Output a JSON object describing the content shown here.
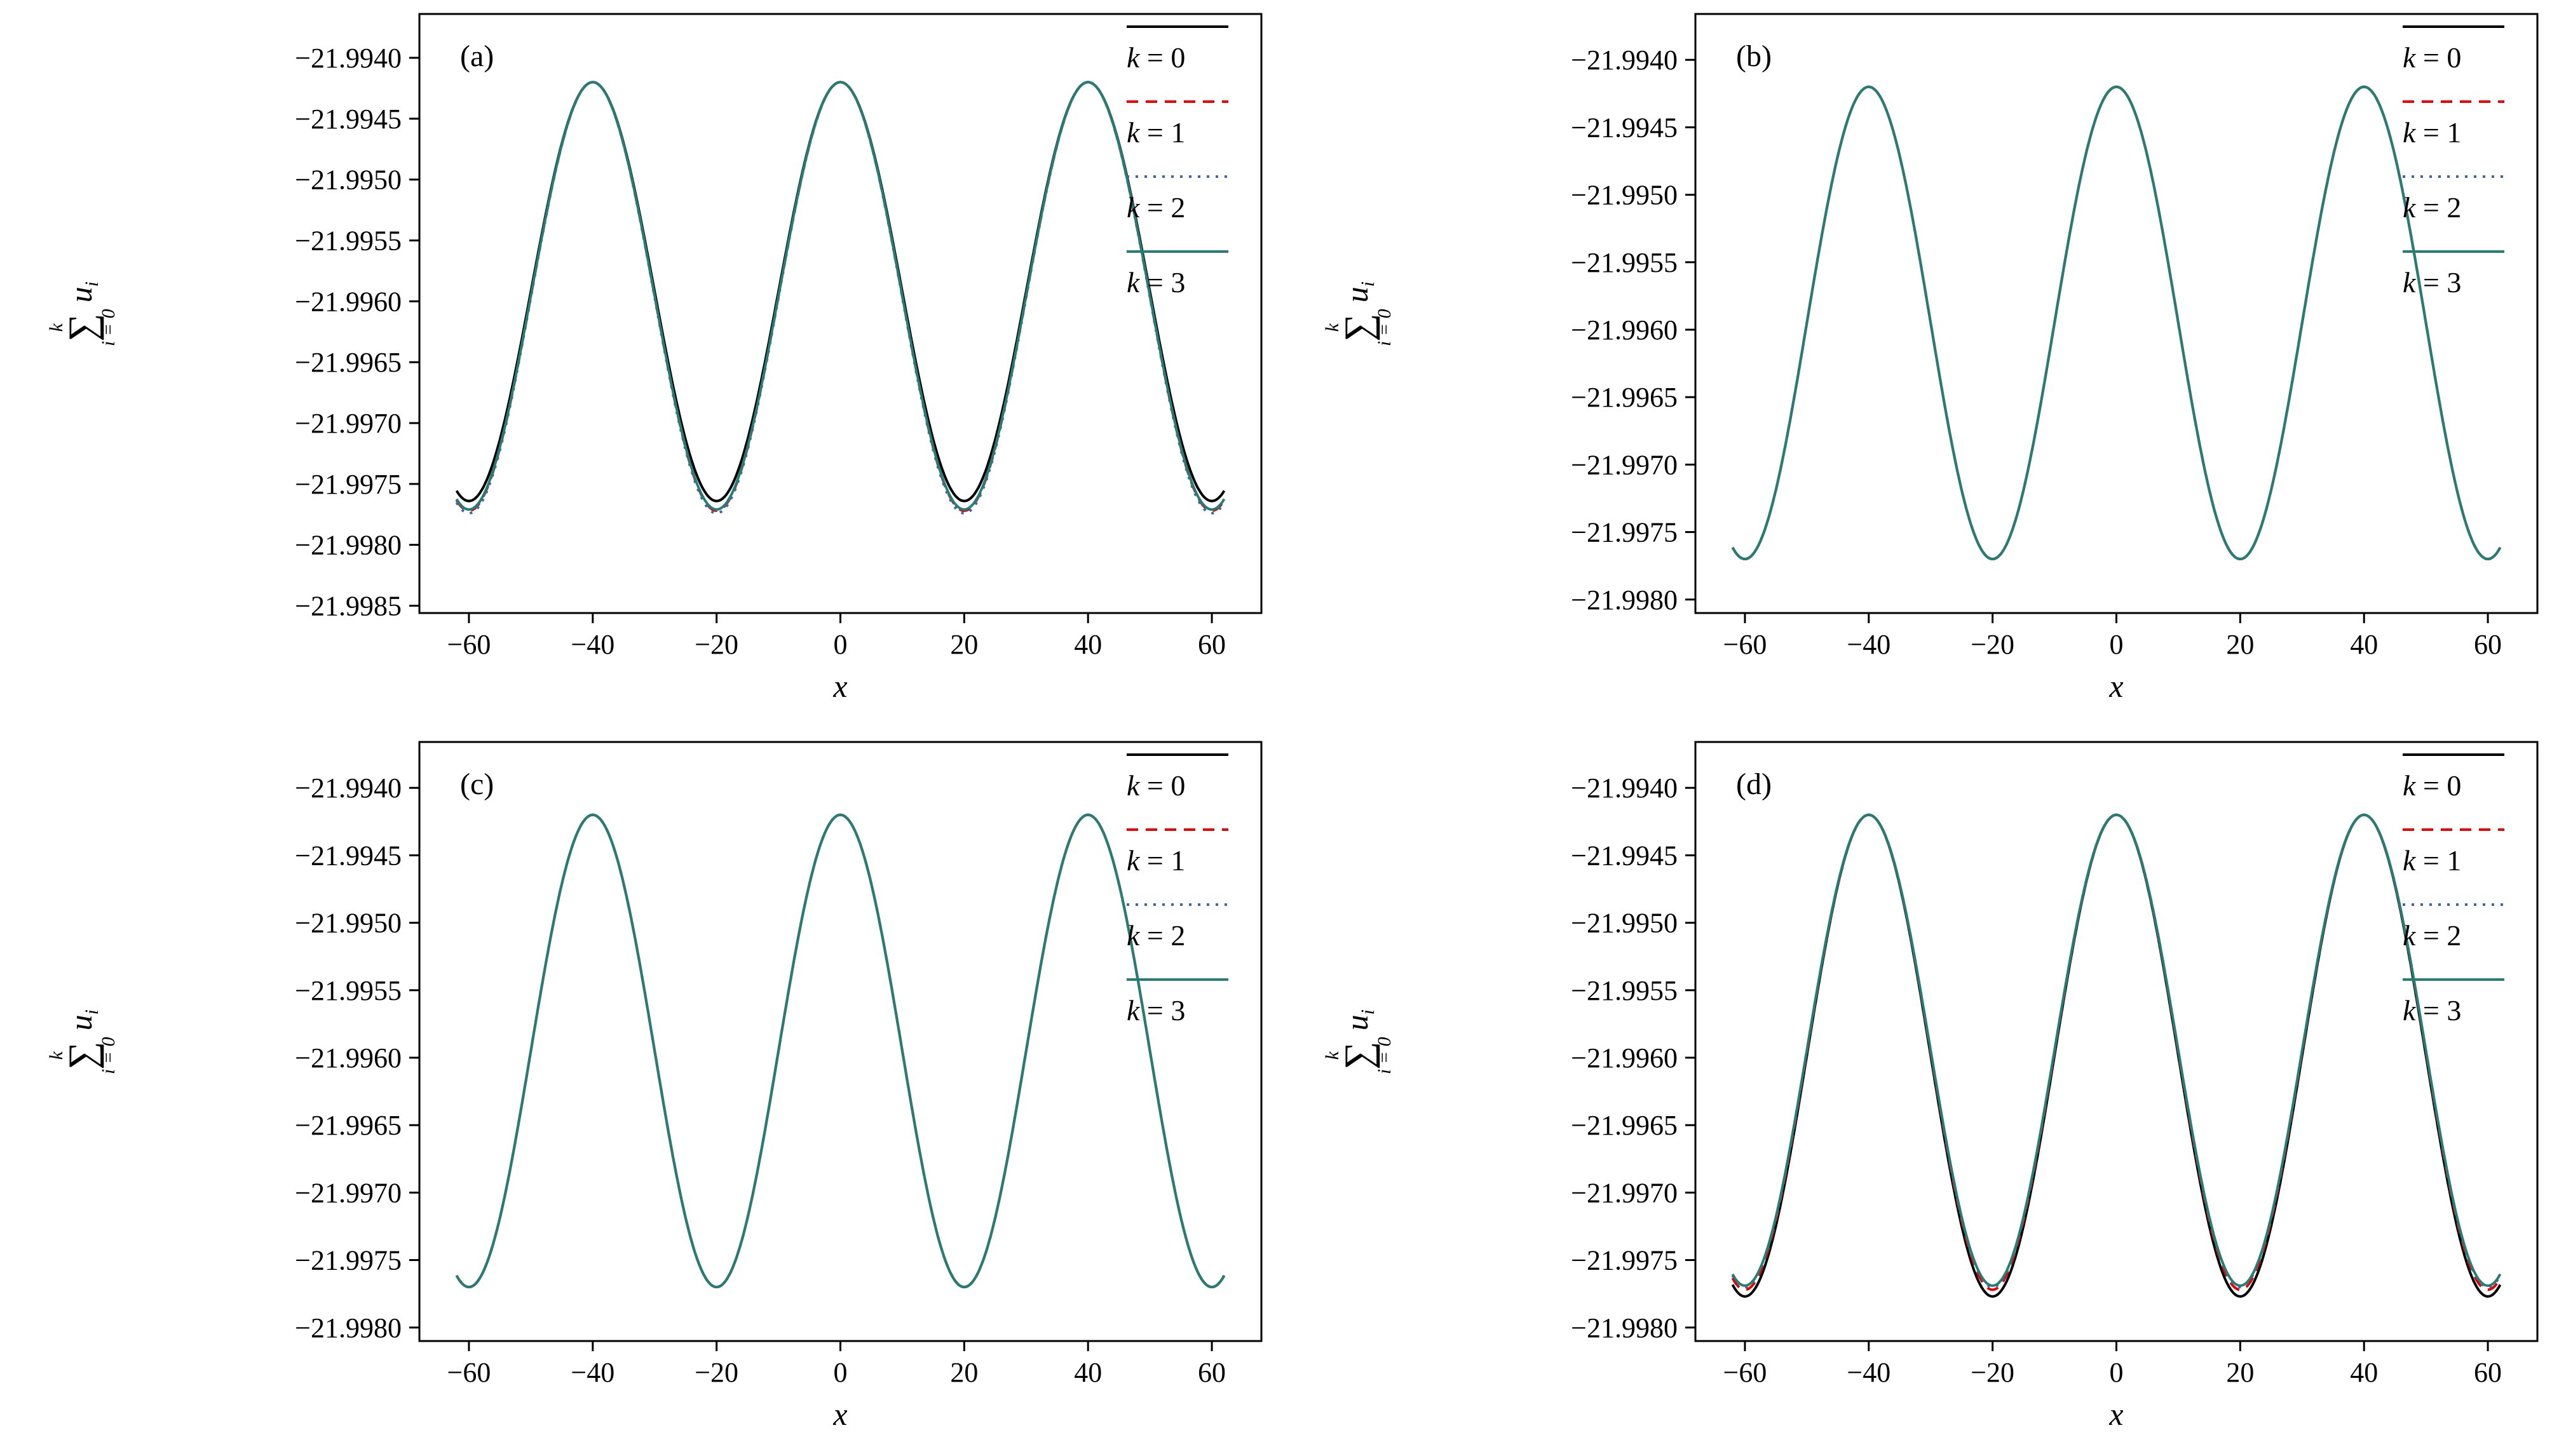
{
  "figure": {
    "background": "#ffffff"
  },
  "ylabel": {
    "upper": "k",
    "sigma": "∑",
    "lower": "i = 0",
    "term": "u",
    "term_sub": "i"
  },
  "colors": {
    "k0": "#000000",
    "k1": "#e60000",
    "k2": "#3a66a8",
    "k3": "#267d76"
  },
  "legend_entries": [
    "k = 0",
    "k = 1",
    "k = 2",
    "k = 3"
  ],
  "chart_data": [
    {
      "id": "a",
      "label": "(a)",
      "type": "line",
      "xlabel": "x",
      "xlim": [
        -68,
        68
      ],
      "ylim": [
        -21.99856,
        -21.99364
      ],
      "xticks": [
        -60,
        -40,
        -20,
        0,
        20,
        40,
        60
      ],
      "yticks": [
        -21.994,
        -21.9945,
        -21.995,
        -21.9955,
        -21.996,
        -21.9965,
        -21.997,
        -21.9975,
        -21.998,
        -21.9985
      ],
      "x_sample": {
        "start": -62,
        "end": 62,
        "step": 0.25
      },
      "curve_model": "y(x) = peak - depth*(1 - cos(2*pi*x/period))/2",
      "peaks_x": [
        -40,
        0,
        40
      ],
      "troughs_x": [
        -60,
        -20,
        20,
        60
      ],
      "legend_position": "top-right",
      "series": [
        {
          "name": "k = 0",
          "color": "#000000",
          "style": "solid",
          "period": 40,
          "peak": -21.9942,
          "depth": 0.00344,
          "trough": -21.99764
        },
        {
          "name": "k = 1",
          "color": "#e60000",
          "style": "dashed",
          "period": 40,
          "peak": -21.9942,
          "depth": 0.00352,
          "trough": -21.99772
        },
        {
          "name": "k = 2",
          "color": "#3a66a8",
          "style": "dotted",
          "period": 40,
          "peak": -21.9942,
          "depth": 0.00354,
          "trough": -21.99774
        },
        {
          "name": "k = 3",
          "color": "#267d76",
          "style": "solid",
          "period": 40,
          "peak": -21.9942,
          "depth": 0.00351,
          "trough": -21.99771
        }
      ]
    },
    {
      "id": "b",
      "label": "(b)",
      "type": "line",
      "xlabel": "x",
      "xlim": [
        -68,
        68
      ],
      "ylim": [
        -21.9981,
        -21.99366
      ],
      "xticks": [
        -60,
        -40,
        -20,
        0,
        20,
        40,
        60
      ],
      "yticks": [
        -21.994,
        -21.9945,
        -21.995,
        -21.9955,
        -21.996,
        -21.9965,
        -21.997,
        -21.9975,
        -21.998
      ],
      "x_sample": {
        "start": -62,
        "end": 62,
        "step": 0.25
      },
      "curve_model": "y(x) = peak - depth*(1 - cos(2*pi*x/period))/2",
      "peaks_x": [
        -40,
        0,
        40
      ],
      "troughs_x": [
        -60,
        -20,
        20,
        60
      ],
      "legend_position": "top-right",
      "series": [
        {
          "name": "k = 0",
          "color": "#000000",
          "style": "solid",
          "period": 40,
          "peak": -21.9942,
          "depth": 0.0035,
          "trough": -21.9977
        },
        {
          "name": "k = 1",
          "color": "#e60000",
          "style": "dashed",
          "period": 40,
          "peak": -21.9942,
          "depth": 0.0035,
          "trough": -21.9977
        },
        {
          "name": "k = 2",
          "color": "#3a66a8",
          "style": "dotted",
          "period": 40,
          "peak": -21.9942,
          "depth": 0.0035,
          "trough": -21.9977
        },
        {
          "name": "k = 3",
          "color": "#267d76",
          "style": "solid",
          "period": 40,
          "peak": -21.9942,
          "depth": 0.0035,
          "trough": -21.9977
        }
      ]
    },
    {
      "id": "c",
      "label": "(c)",
      "type": "line",
      "xlabel": "x",
      "xlim": [
        -68,
        68
      ],
      "ylim": [
        -21.9981,
        -21.99366
      ],
      "xticks": [
        -60,
        -40,
        -20,
        0,
        20,
        40,
        60
      ],
      "yticks": [
        -21.994,
        -21.9945,
        -21.995,
        -21.9955,
        -21.996,
        -21.9965,
        -21.997,
        -21.9975,
        -21.998
      ],
      "x_sample": {
        "start": -62,
        "end": 62,
        "step": 0.25
      },
      "curve_model": "y(x) = peak - depth*(1 - cos(2*pi*x/period))/2",
      "peaks_x": [
        -40,
        0,
        40
      ],
      "troughs_x": [
        -60,
        -20,
        20,
        60
      ],
      "legend_position": "top-right",
      "series": [
        {
          "name": "k = 0",
          "color": "#000000",
          "style": "solid",
          "period": 40,
          "peak": -21.9942,
          "depth": 0.0035,
          "trough": -21.9977
        },
        {
          "name": "k = 1",
          "color": "#e60000",
          "style": "dashed",
          "period": 40,
          "peak": -21.9942,
          "depth": 0.0035,
          "trough": -21.9977
        },
        {
          "name": "k = 2",
          "color": "#3a66a8",
          "style": "dotted",
          "period": 40,
          "peak": -21.9942,
          "depth": 0.0035,
          "trough": -21.9977
        },
        {
          "name": "k = 3",
          "color": "#267d76",
          "style": "solid",
          "period": 40,
          "peak": -21.9942,
          "depth": 0.0035,
          "trough": -21.9977
        }
      ]
    },
    {
      "id": "d",
      "label": "(d)",
      "type": "line",
      "xlabel": "x",
      "xlim": [
        -68,
        68
      ],
      "ylim": [
        -21.9981,
        -21.99366
      ],
      "xticks": [
        -60,
        -40,
        -20,
        0,
        20,
        40,
        60
      ],
      "yticks": [
        -21.994,
        -21.9945,
        -21.995,
        -21.9955,
        -21.996,
        -21.9965,
        -21.997,
        -21.9975,
        -21.998
      ],
      "x_sample": {
        "start": -62,
        "end": 62,
        "step": 0.25
      },
      "curve_model": "y(x) = peak - depth*(1 - cos(2*pi*x/period))/2",
      "peaks_x": [
        -40,
        0,
        40
      ],
      "troughs_x": [
        -60,
        -20,
        20,
        60
      ],
      "legend_position": "top-right",
      "series": [
        {
          "name": "k = 0",
          "color": "#000000",
          "style": "solid",
          "period": 40,
          "peak": -21.9942,
          "depth": 0.00357,
          "trough": -21.99777
        },
        {
          "name": "k = 1",
          "color": "#e60000",
          "style": "dashed",
          "period": 40,
          "peak": -21.9942,
          "depth": 0.00352,
          "trough": -21.99772
        },
        {
          "name": "k = 2",
          "color": "#3a66a8",
          "style": "dotted",
          "period": 40,
          "peak": -21.9942,
          "depth": 0.0035,
          "trough": -21.9977
        },
        {
          "name": "k = 3",
          "color": "#267d76",
          "style": "solid",
          "period": 40,
          "peak": -21.9942,
          "depth": 0.00349,
          "trough": -21.99769
        }
      ]
    }
  ]
}
